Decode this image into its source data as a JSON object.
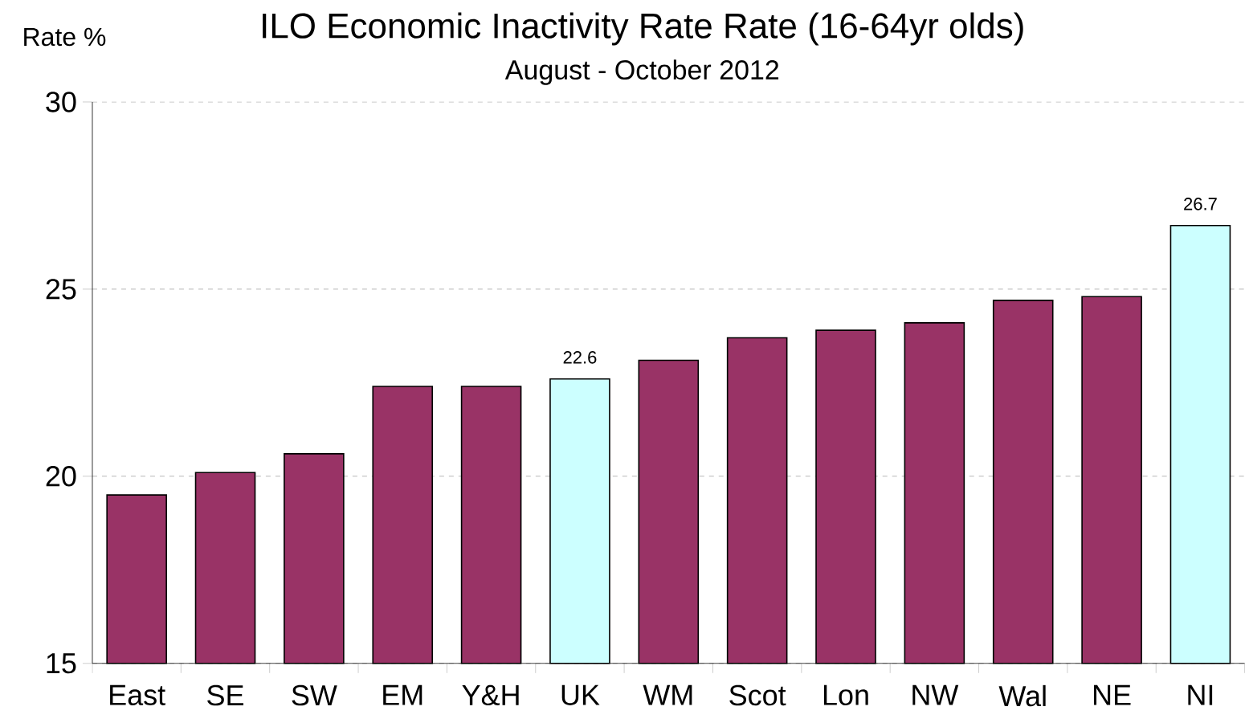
{
  "chart_data": {
    "type": "bar",
    "title": "ILO Economic Inactivity Rate Rate (16-64yr olds)",
    "subtitle": "August - October 2012",
    "ylabel": "Rate %",
    "categories": [
      "East",
      "SE",
      "SW",
      "EM",
      "Y&H",
      "UK",
      "WM",
      "Scot",
      "Lon",
      "NW",
      "Wal",
      "NE",
      "NI"
    ],
    "values": [
      19.5,
      20.1,
      20.6,
      22.4,
      22.4,
      22.6,
      23.1,
      23.7,
      23.9,
      24.1,
      24.7,
      24.8,
      26.7
    ],
    "colors": [
      "#993366",
      "#993366",
      "#993366",
      "#993366",
      "#993366",
      "#ccffff",
      "#993366",
      "#993366",
      "#993366",
      "#993366",
      "#993366",
      "#993366",
      "#ccffff"
    ],
    "value_labels": [
      null,
      null,
      null,
      null,
      null,
      "22.6",
      null,
      null,
      null,
      null,
      null,
      null,
      "26.7"
    ],
    "ylim": [
      15,
      30
    ],
    "yticks": [
      15,
      20,
      25,
      30
    ],
    "grid": "y"
  }
}
